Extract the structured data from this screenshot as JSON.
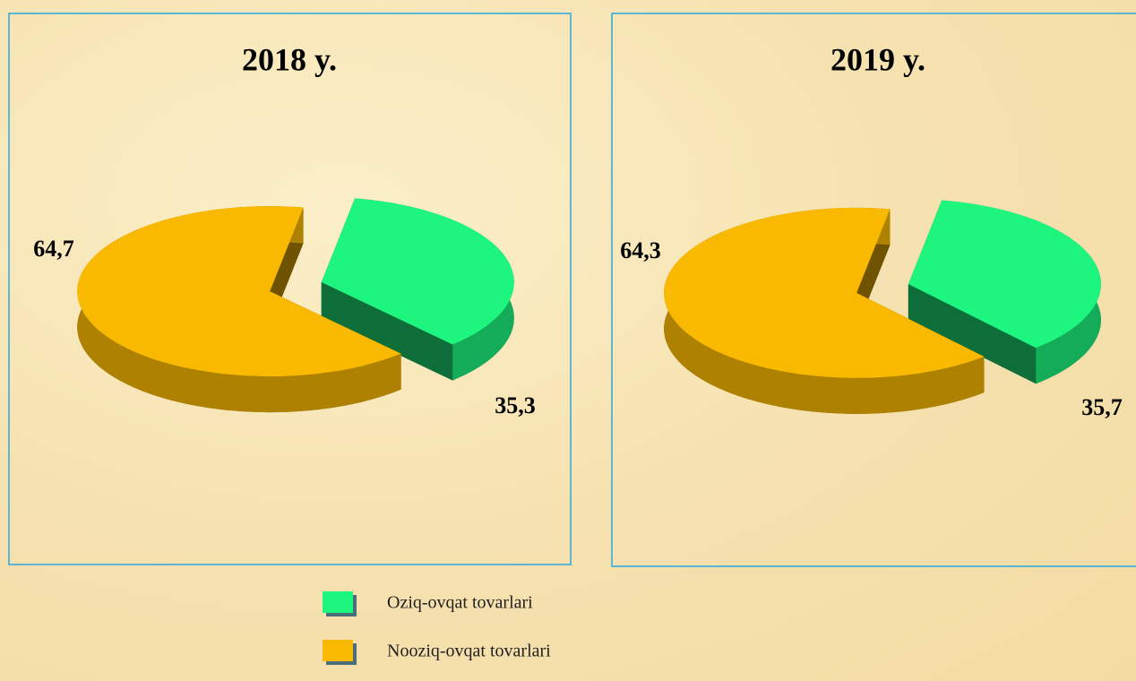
{
  "chart_data": [
    {
      "type": "pie",
      "title": "2018 y.",
      "values": [
        35.3,
        64.7
      ],
      "value_labels": [
        "35,3",
        "64,7"
      ]
    },
    {
      "type": "pie",
      "title": "2019 y.",
      "values": [
        35.7,
        64.3
      ],
      "value_labels": [
        "35,7",
        "64,3"
      ]
    }
  ],
  "legend": {
    "labels": [
      "Oziq-ovqat tovarlari",
      "Nooziq-ovqat tovarlari"
    ],
    "colors": [
      "#1ef57f",
      "#f8b900"
    ]
  }
}
